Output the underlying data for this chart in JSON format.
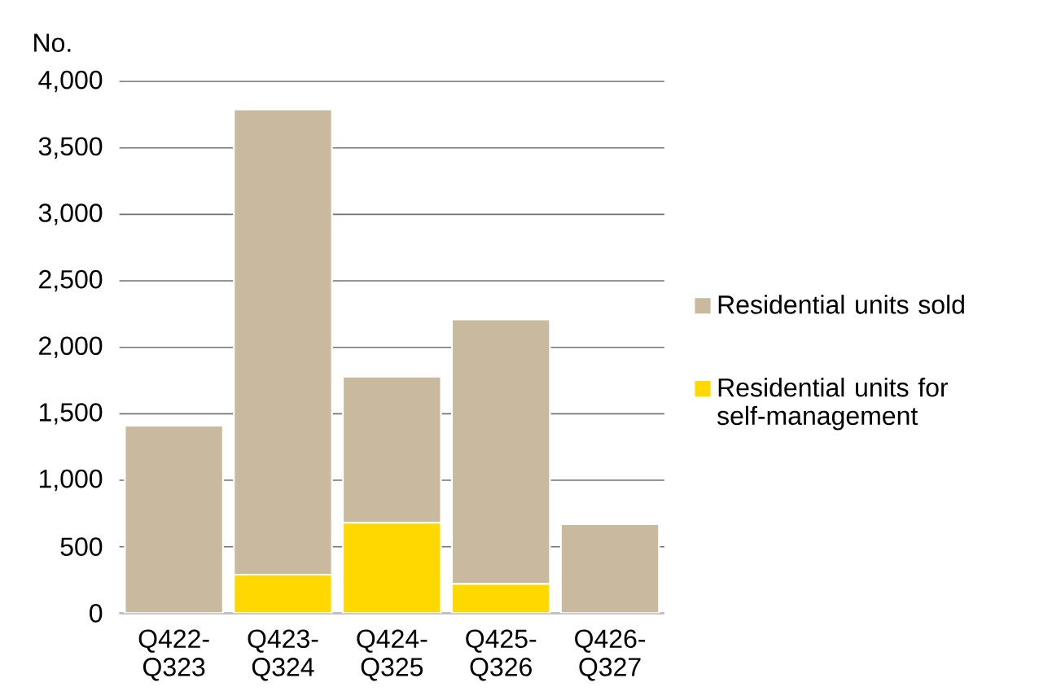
{
  "chart_data": {
    "type": "bar",
    "stacked": true,
    "ylabel": "No.",
    "categories": [
      "Q422-Q323",
      "Q423-Q324",
      "Q424-Q325",
      "Q425-Q326",
      "Q426-Q327"
    ],
    "series": [
      {
        "name": "Residential units for self-management",
        "color": "#ffd800",
        "values": [
          0,
          290,
          680,
          220,
          0
        ]
      },
      {
        "name": "Residential units sold",
        "color": "#c9b99f",
        "values": [
          1410,
          3500,
          1100,
          1990,
          670
        ]
      }
    ],
    "ylim": [
      0,
      4000
    ],
    "yticks": [
      0,
      500,
      {
        "value": 1000,
        "label": "1,000"
      },
      {
        "value": 1500,
        "label": "1,500"
      },
      {
        "value": 2000,
        "label": "2,000"
      },
      {
        "value": 2500,
        "label": "2,500"
      },
      {
        "value": 3000,
        "label": "3,000"
      },
      {
        "value": 3500,
        "label": "3,500"
      },
      {
        "value": 4000,
        "label": "4,000"
      }
    ],
    "grid": "y",
    "legend": "right"
  }
}
